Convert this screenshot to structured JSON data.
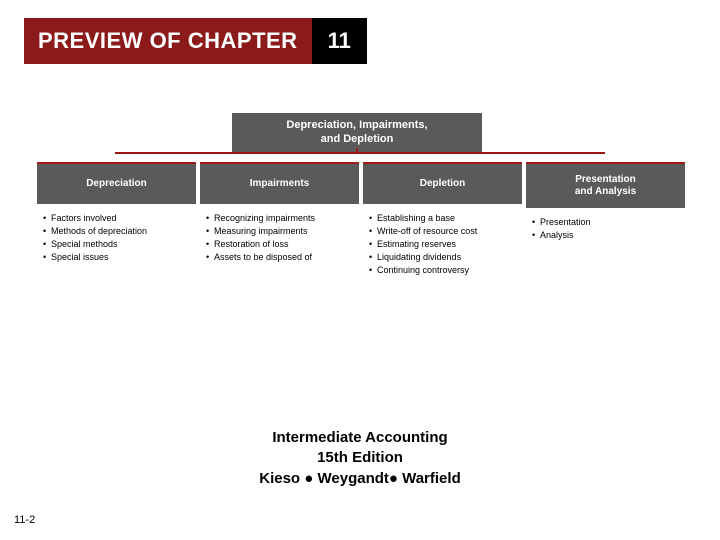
{
  "title": {
    "label": "PREVIEW OF CHAPTER",
    "number": "11"
  },
  "topic": {
    "heading": "Depreciation, Impairments,\nand Depletion"
  },
  "columns": [
    {
      "header": "Depreciation",
      "items": [
        "Factors involved",
        "Methods of depreciation",
        "Special methods",
        "Special issues"
      ]
    },
    {
      "header": "Impairments",
      "items": [
        "Recognizing impairments",
        "Measuring impairments",
        "Restoration of loss",
        "Assets to be disposed of"
      ]
    },
    {
      "header": "Depletion",
      "items": [
        "Establishing a base",
        "Write-off of resource cost",
        "Estimating reserves",
        "Liquidating dividends",
        "Continuing controversy"
      ]
    },
    {
      "header": "Presentation\nand Analysis",
      "items": [
        "Presentation",
        "Analysis"
      ]
    }
  ],
  "footer": {
    "line1": "Intermediate Accounting",
    "line2": "15th Edition",
    "line3": "Kieso ● Weygandt● Warfield"
  },
  "page": "11-2"
}
